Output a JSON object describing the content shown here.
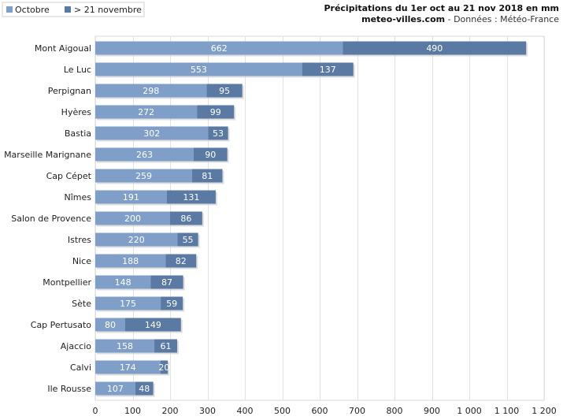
{
  "chart_data": {
    "type": "bar",
    "orientation": "horizontal",
    "stacked": true,
    "title": "Précipitations du 1er oct au 21 nov 2018 en mm",
    "source": {
      "site": "meteo-villes.com",
      "rest": " - Données : Météo-France"
    },
    "categories": [
      "Mont Aigoual",
      "Le Luc",
      "Perpignan",
      "Hyères",
      "Bastia",
      "Marseille Marignane",
      "Cap Cépet",
      "Nîmes",
      "Salon de Provence",
      "Istres",
      "Nice",
      "Montpellier",
      "Sète",
      "Cap Pertusato",
      "Ajaccio",
      "Calvi",
      "Ile Rousse"
    ],
    "series": [
      {
        "name": "Octobre",
        "color": "#7f9fc8",
        "values": [
          662,
          553,
          298,
          272,
          302,
          263,
          259,
          191,
          200,
          220,
          188,
          148,
          175,
          80,
          158,
          174,
          107
        ]
      },
      {
        "name": "> 21 novembre",
        "color": "#5a7aa3",
        "values": [
          490,
          137,
          95,
          99,
          53,
          90,
          81,
          131,
          86,
          55,
          82,
          87,
          59,
          149,
          61,
          20,
          48
        ]
      }
    ],
    "xlim": [
      0,
      1200
    ],
    "ticks": [
      0,
      100,
      200,
      300,
      400,
      500,
      600,
      700,
      800,
      900,
      1000,
      1100,
      1200
    ],
    "tick_labels": [
      "0",
      "100",
      "200",
      "300",
      "400",
      "500",
      "600",
      "700",
      "800",
      "900",
      "1 000",
      "1 100",
      "1 200"
    ],
    "grid": true,
    "legend": "top-left"
  }
}
